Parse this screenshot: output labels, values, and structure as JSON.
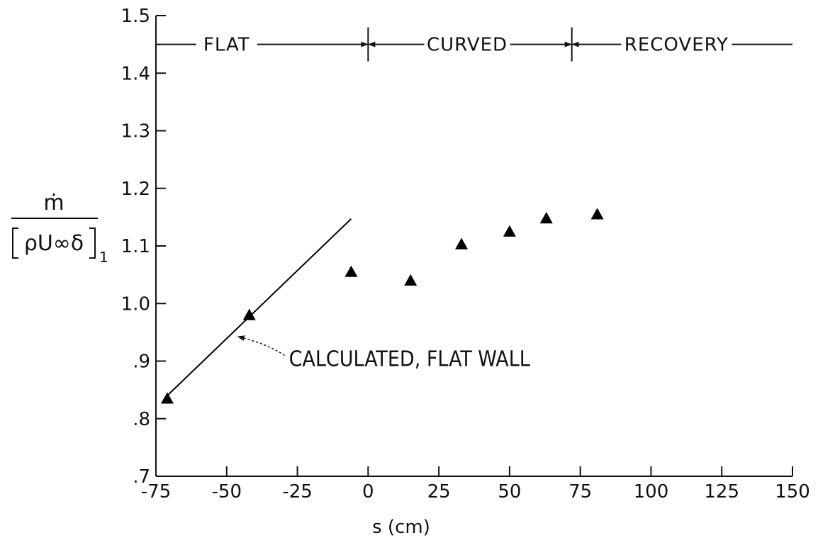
{
  "chart_data": {
    "type": "scatter",
    "title": "",
    "xlabel": "s (cm)",
    "ylabel": {
      "numerator": "ṁ",
      "denominator": "ρU∞δ",
      "subscript": "1"
    },
    "xlim": [
      -75,
      150
    ],
    "ylim": [
      0.7,
      1.5
    ],
    "x_ticks": [
      -75,
      -50,
      -25,
      0,
      25,
      50,
      75,
      100,
      125,
      150
    ],
    "x_tick_labels": [
      "-75",
      "-50",
      "-25",
      "0",
      "25",
      "50",
      "75",
      "100",
      "125",
      "150"
    ],
    "y_ticks": [
      0.7,
      0.8,
      0.9,
      1.0,
      1.1,
      1.2,
      1.3,
      1.4,
      1.5
    ],
    "y_tick_labels": [
      ".7",
      ".8",
      ".9",
      "1.0",
      "1.1",
      "1.2",
      "1.3",
      "1.4",
      "1.5"
    ],
    "grid": false,
    "series": [
      {
        "marker": "triangle",
        "color": "#000000",
        "x": [
          -71,
          -42,
          -6,
          15,
          33,
          50,
          63,
          81
        ],
        "y": [
          0.835,
          0.98,
          1.055,
          1.04,
          1.103,
          1.125,
          1.148,
          1.155
        ]
      },
      {
        "line": true,
        "color": "#000000",
        "x": [
          -71,
          -6
        ],
        "y": [
          0.84,
          1.147
        ]
      }
    ],
    "regions": {
      "y": 1.45,
      "boundaries": [
        0,
        72
      ],
      "labels": [
        {
          "text": "FLAT",
          "x": -50
        },
        {
          "text": "CURVED",
          "x": 35
        },
        {
          "text": "RECOVERY",
          "x": 109
        }
      ]
    },
    "annotation": {
      "text": "CALCULATED, FLAT WALL",
      "x": -28,
      "y": 0.905,
      "arrow_to": [
        -47,
        0.945
      ]
    }
  }
}
